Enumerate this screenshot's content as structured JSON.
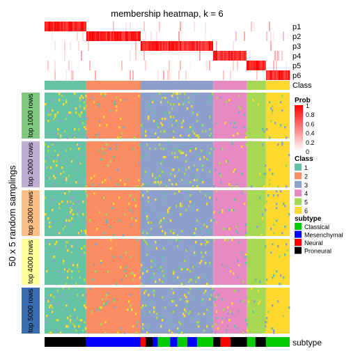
{
  "chart_data": {
    "type": "heatmap",
    "title": "membership heatmap, k = 6",
    "ylabel": "50 x 5 random samplings",
    "probability_rows": [
      "p1",
      "p2",
      "p3",
      "p4",
      "p5",
      "p6"
    ],
    "class_row_label": "Class",
    "subtype_row_label": "subtype",
    "classes": [
      "1",
      "2",
      "3",
      "4",
      "5",
      "6"
    ],
    "class_colors": {
      "1": "#66C2A5",
      "2": "#FC8D62",
      "3": "#8DA0CB",
      "4": "#E78AC3",
      "5": "#A6D854",
      "6": "#FFD92F"
    },
    "class_proportions": [
      0.17,
      0.222,
      0.296,
      0.138,
      0.077,
      0.097
    ],
    "row_blocks": [
      {
        "label": "top 1000 rows",
        "color": "#7FC97F"
      },
      {
        "label": "top 2000 rows",
        "color": "#BEAED4"
      },
      {
        "label": "top 3000 rows",
        "color": "#FDC086"
      },
      {
        "label": "top 4000 rows",
        "color": "#FFFF99"
      },
      {
        "label": "top 5000 rows",
        "color": "#386CB0"
      }
    ],
    "prob_legend": {
      "title": "Prob",
      "ticks": [
        "1",
        "0.8",
        "0.6",
        "0.4",
        "0.2",
        "0"
      ],
      "range": [
        0,
        1
      ],
      "low_color": "#FFFFFF",
      "high_color": "#FF0000"
    },
    "class_legend": {
      "title": "Class",
      "entries": [
        "1",
        "2",
        "3",
        "4",
        "5",
        "6"
      ]
    },
    "subtype_legend": {
      "title": "subtype",
      "entries": [
        {
          "label": "Classical",
          "color": "#00CC00"
        },
        {
          "label": "Mesenchymal",
          "color": "#0000FF"
        },
        {
          "label": "Neural",
          "color": "#FF0000"
        },
        {
          "label": "Proneural",
          "color": "#000000"
        }
      ]
    },
    "subtype_segments": [
      {
        "subtype": "Proneural",
        "fraction": 0.17
      },
      {
        "subtype": "Mesenchymal",
        "fraction": 0.222
      },
      {
        "subtype": "Neural",
        "fraction": 0.02
      },
      {
        "subtype": "Proneural",
        "fraction": 0.03
      },
      {
        "subtype": "Mesenchymal",
        "fraction": 0.02
      },
      {
        "subtype": "Classical",
        "fraction": 0.05
      },
      {
        "subtype": "Mesenchymal",
        "fraction": 0.03
      },
      {
        "subtype": "Classical",
        "fraction": 0.04
      },
      {
        "subtype": "Mesenchymal",
        "fraction": 0.04
      },
      {
        "subtype": "Classical",
        "fraction": 0.066
      },
      {
        "subtype": "Proneural",
        "fraction": 0.03
      },
      {
        "subtype": "Neural",
        "fraction": 0.04
      },
      {
        "subtype": "Proneural",
        "fraction": 0.068
      },
      {
        "subtype": "Classical",
        "fraction": 0.034
      },
      {
        "subtype": "Proneural",
        "fraction": 0.043
      },
      {
        "subtype": "Classical",
        "fraction": 0.097
      }
    ]
  }
}
